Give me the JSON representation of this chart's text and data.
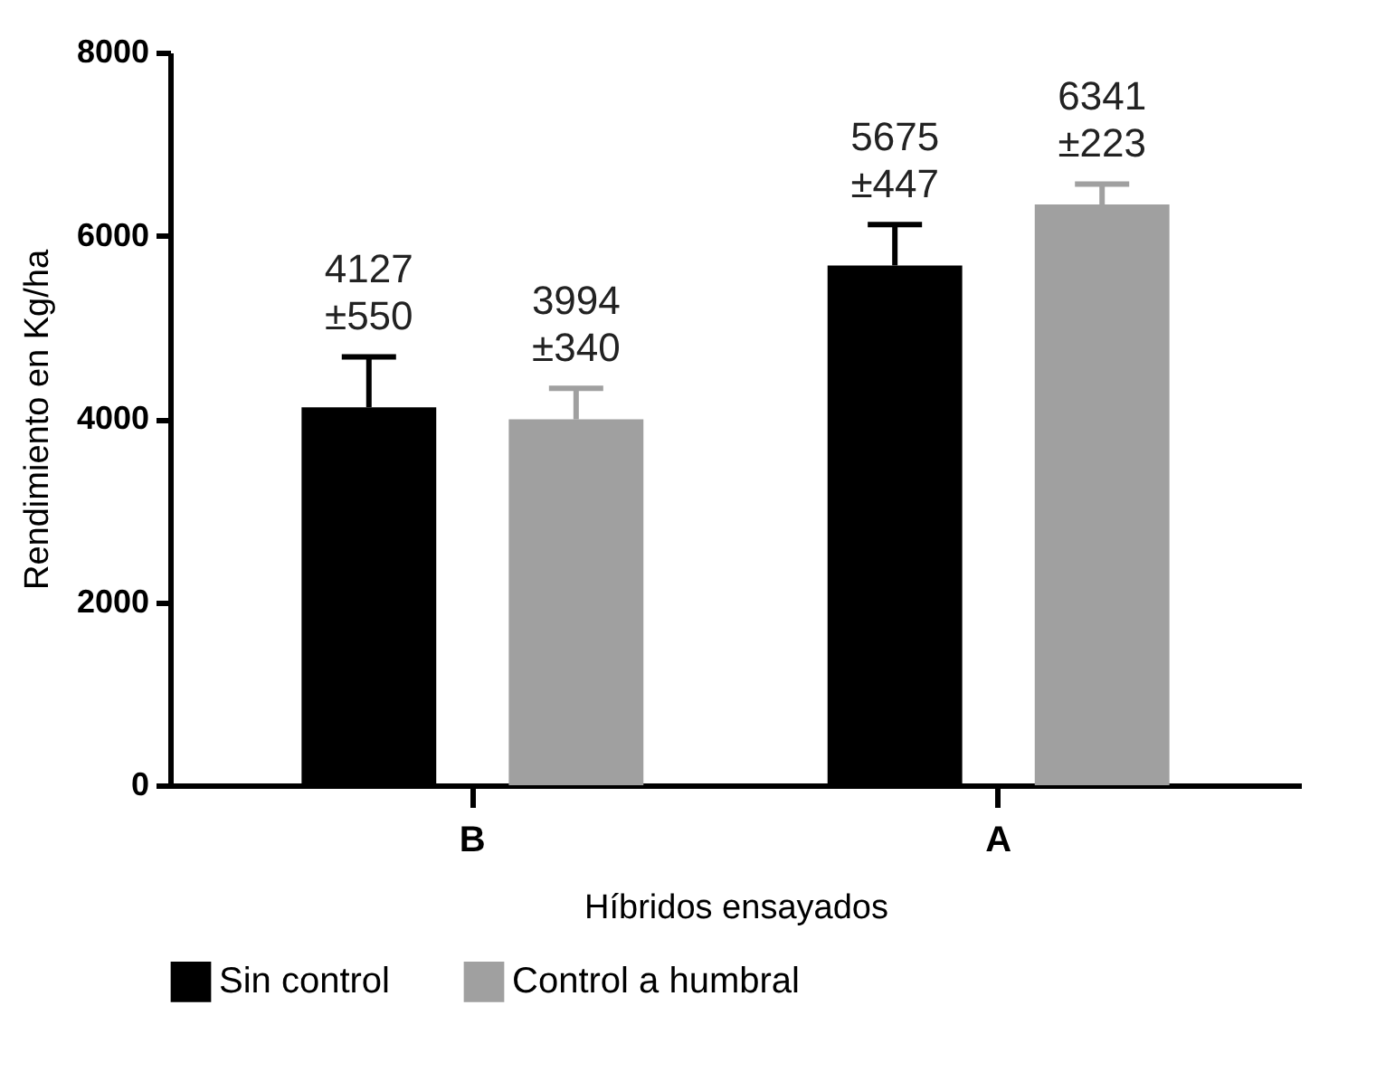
{
  "chart_data": {
    "type": "bar",
    "xlabel": "Híbridos ensayados",
    "ylabel": "Rendimiento en Kg/ha",
    "categories": [
      "B",
      "A"
    ],
    "series": [
      {
        "name": "Sin control",
        "color": "#000000",
        "values": [
          4127,
          5675
        ],
        "errors": [
          [
            4127,
            4677
          ],
          [
            5675,
            6122
          ]
        ],
        "value_labels": [
          "4127\n±550",
          "5675\n±447"
        ]
      },
      {
        "name": "Control a humbral",
        "color": "#a0a0a0",
        "values": [
          3994,
          6341
        ],
        "errors": [
          [
            3994,
            4334
          ],
          [
            6341,
            6564
          ]
        ],
        "value_labels": [
          "3994\n±340",
          "6341\n±223"
        ]
      }
    ],
    "ylim": [
      0,
      8000
    ],
    "yticks": [
      0,
      2000,
      4000,
      6000,
      8000
    ],
    "grid": false,
    "legend": "bottom"
  }
}
